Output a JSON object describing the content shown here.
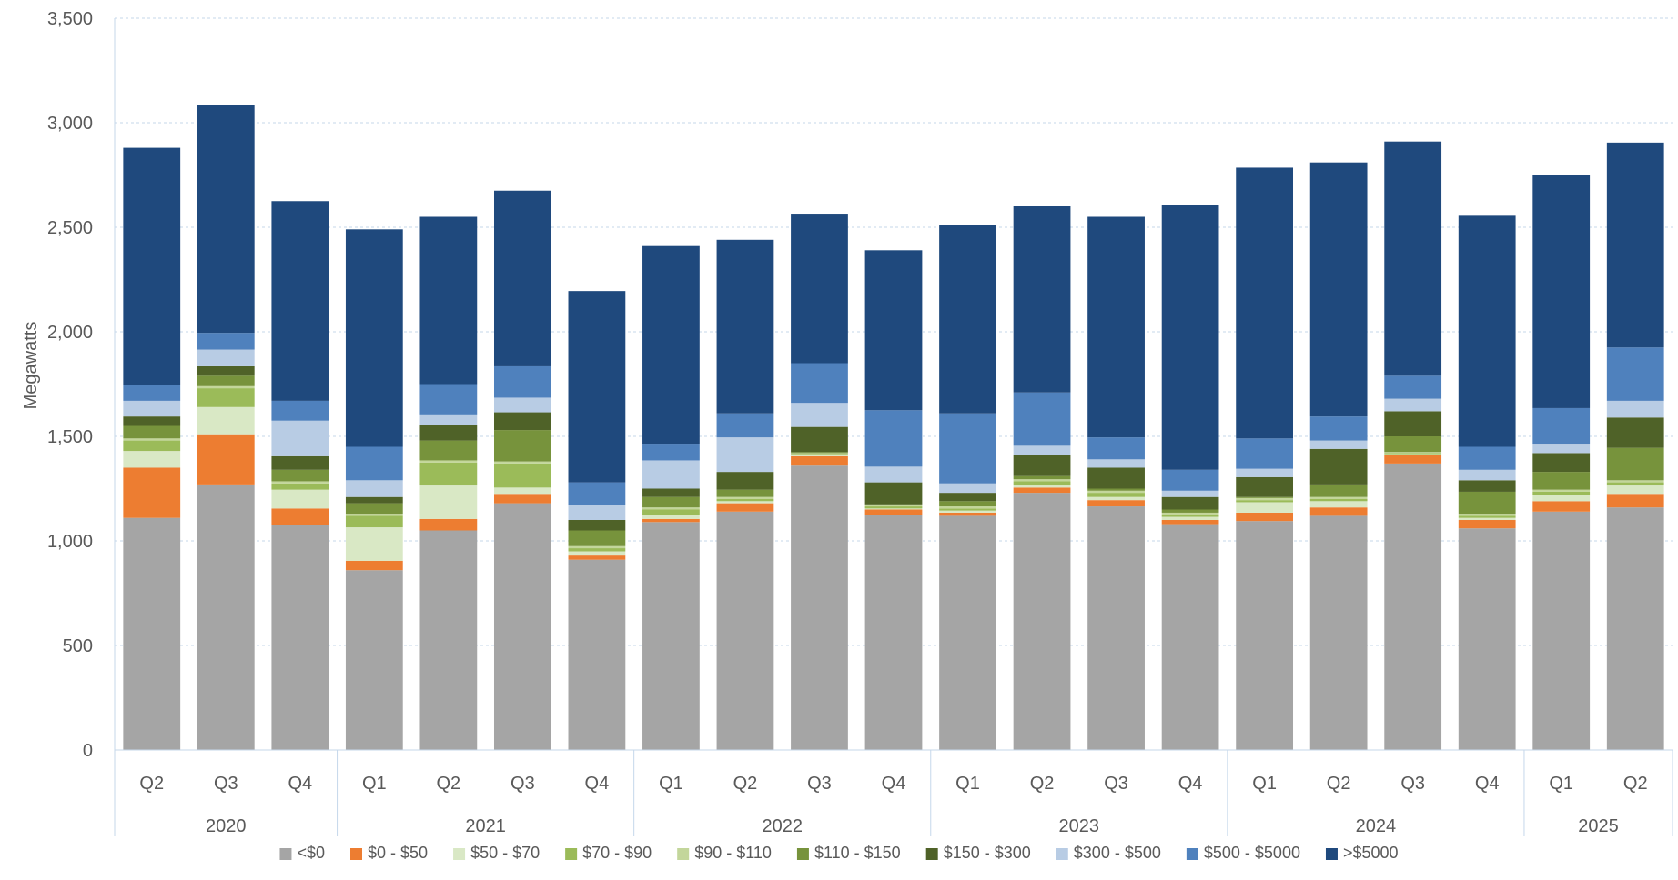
{
  "chart_data": {
    "type": "bar",
    "stacked": true,
    "ylabel": "Megawatts",
    "xlabel": "",
    "ylim": [
      0,
      3500
    ],
    "yticks": [
      "0",
      "500",
      "1,000",
      "1,500",
      "2,000",
      "2,500",
      "3,000",
      "3,500"
    ],
    "ytick_values": [
      0,
      500,
      1000,
      1500,
      2000,
      2500,
      3000,
      3500
    ],
    "grid": true,
    "legend_position": "bottom",
    "categories": [
      "2020 Q2",
      "2020 Q3",
      "2020 Q4",
      "2021 Q1",
      "2021 Q2",
      "2021 Q3",
      "2021 Q4",
      "2022 Q1",
      "2022 Q2",
      "2022 Q3",
      "2022 Q4",
      "2023 Q1",
      "2023 Q2",
      "2023 Q3",
      "2023 Q4",
      "2024 Q1",
      "2024 Q2",
      "2024 Q3",
      "2024 Q4",
      "2025 Q1",
      "2025 Q2"
    ],
    "quarter_labels": [
      "Q2",
      "Q3",
      "Q4",
      "Q1",
      "Q2",
      "Q3",
      "Q4",
      "Q1",
      "Q2",
      "Q3",
      "Q4",
      "Q1",
      "Q2",
      "Q3",
      "Q4",
      "Q1",
      "Q2",
      "Q3",
      "Q4",
      "Q1",
      "Q2"
    ],
    "year_groups": [
      {
        "label": "2020",
        "count": 3
      },
      {
        "label": "2021",
        "count": 4
      },
      {
        "label": "2022",
        "count": 4
      },
      {
        "label": "2023",
        "count": 4
      },
      {
        "label": "2024",
        "count": 4
      },
      {
        "label": "2025",
        "count": 2
      }
    ],
    "series": [
      {
        "name": "<$0",
        "color": "#a5a5a5",
        "values": [
          1110,
          1270,
          1075,
          860,
          1050,
          1180,
          910,
          1090,
          1140,
          1360,
          1125,
          1120,
          1230,
          1165,
          1080,
          1095,
          1120,
          1370,
          1060,
          1140,
          1160
        ]
      },
      {
        "name": "$0 - $50",
        "color": "#ed7d31",
        "values": [
          240,
          240,
          80,
          45,
          55,
          45,
          20,
          15,
          40,
          45,
          25,
          15,
          25,
          30,
          20,
          40,
          40,
          40,
          40,
          50,
          65
        ]
      },
      {
        "name": "$50 - $70",
        "color": "#d9e8c5",
        "values": [
          80,
          130,
          90,
          160,
          160,
          30,
          20,
          20,
          10,
          5,
          5,
          10,
          10,
          15,
          15,
          50,
          30,
          5,
          10,
          30,
          40
        ]
      },
      {
        "name": "$70 - $90",
        "color": "#9bbb59",
        "values": [
          50,
          90,
          30,
          55,
          110,
          115,
          15,
          25,
          10,
          5,
          10,
          10,
          20,
          20,
          10,
          10,
          10,
          5,
          10,
          15,
          15
        ]
      },
      {
        "name": "$90 - $110",
        "color": "#c3d69b",
        "values": [
          10,
          10,
          10,
          10,
          10,
          10,
          10,
          10,
          10,
          5,
          5,
          10,
          10,
          10,
          10,
          10,
          10,
          5,
          10,
          10,
          10
        ]
      },
      {
        "name": "$110 - $150",
        "color": "#77933c",
        "values": [
          60,
          50,
          55,
          50,
          95,
          150,
          75,
          50,
          35,
          5,
          5,
          25,
          15,
          10,
          15,
          5,
          60,
          75,
          105,
          85,
          155
        ]
      },
      {
        "name": "$150 - $300",
        "color": "#4f6228",
        "values": [
          45,
          45,
          65,
          30,
          75,
          85,
          50,
          40,
          85,
          120,
          105,
          40,
          100,
          100,
          60,
          95,
          170,
          120,
          55,
          90,
          145
        ]
      },
      {
        "name": "$300 - $500",
        "color": "#b8cce4",
        "values": [
          75,
          80,
          170,
          80,
          50,
          70,
          70,
          135,
          165,
          115,
          75,
          45,
          45,
          40,
          30,
          40,
          40,
          60,
          50,
          45,
          80
        ]
      },
      {
        "name": "$500 - $5000",
        "color": "#4f81bd",
        "values": [
          75,
          80,
          95,
          160,
          145,
          150,
          110,
          80,
          115,
          190,
          270,
          335,
          255,
          105,
          100,
          145,
          115,
          110,
          110,
          170,
          255
        ]
      },
      {
        "name": ">$5000",
        "color": "#1f497d",
        "values": [
          1135,
          1090,
          955,
          1040,
          800,
          840,
          915,
          945,
          830,
          715,
          765,
          900,
          890,
          1055,
          1265,
          1295,
          1215,
          1120,
          1105,
          1115,
          980
        ]
      }
    ]
  }
}
